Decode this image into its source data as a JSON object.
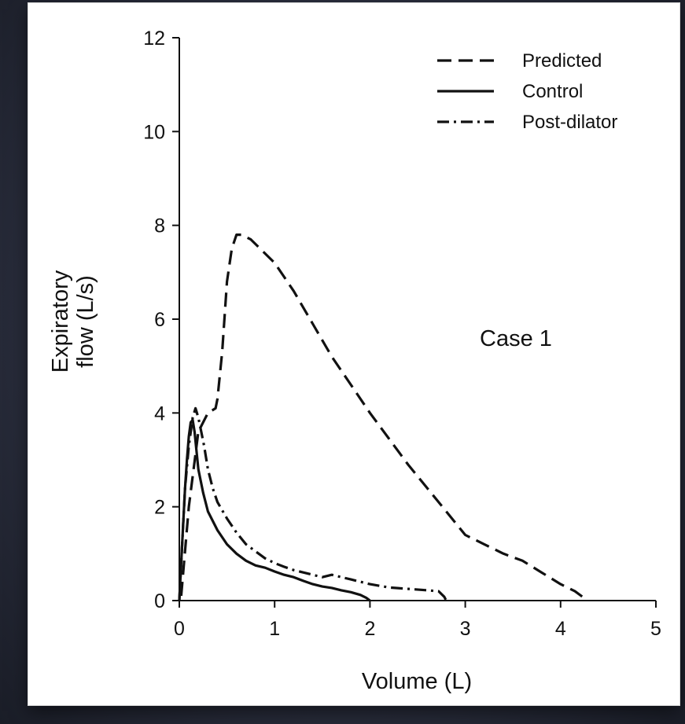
{
  "chart_data": {
    "type": "line",
    "title": "",
    "xlabel": "Volume (L)",
    "ylabel_lines": [
      "Expiratory",
      "flow (L/s)"
    ],
    "xlim": [
      0,
      5
    ],
    "ylim": [
      0,
      12
    ],
    "x_ticks": [
      0,
      1,
      2,
      3,
      4,
      5
    ],
    "y_ticks": [
      0,
      2,
      4,
      6,
      8,
      10,
      12
    ],
    "grid": false,
    "legend_position": "top-right",
    "annotation": "Case 1",
    "series": [
      {
        "name": "Predicted",
        "style": "dashed",
        "x": [
          0.02,
          0.1,
          0.2,
          0.3,
          0.38,
          0.4,
          0.45,
          0.5,
          0.55,
          0.6,
          0.65,
          0.75,
          0.85,
          1.0,
          1.2,
          1.4,
          1.6,
          1.8,
          2.0,
          2.2,
          2.4,
          2.6,
          2.8,
          3.0,
          3.2,
          3.4,
          3.6,
          3.8,
          4.0,
          4.15,
          4.25,
          4.28
        ],
        "y": [
          0.1,
          2.0,
          3.6,
          4.0,
          4.1,
          4.3,
          5.3,
          6.8,
          7.5,
          7.8,
          7.8,
          7.7,
          7.5,
          7.2,
          6.6,
          5.9,
          5.2,
          4.6,
          4.0,
          3.45,
          2.9,
          2.4,
          1.9,
          1.4,
          1.2,
          1.0,
          0.85,
          0.6,
          0.35,
          0.2,
          0.05,
          0.0
        ]
      },
      {
        "name": "Control",
        "style": "solid",
        "x": [
          0.0,
          0.02,
          0.04,
          0.06,
          0.08,
          0.1,
          0.12,
          0.14,
          0.16,
          0.18,
          0.2,
          0.25,
          0.3,
          0.4,
          0.5,
          0.6,
          0.7,
          0.8,
          0.9,
          1.0,
          1.1,
          1.2,
          1.3,
          1.4,
          1.5,
          1.6,
          1.7,
          1.8,
          1.9,
          1.96,
          2.0
        ],
        "y": [
          0.0,
          0.8,
          1.6,
          2.4,
          3.0,
          3.5,
          3.8,
          3.85,
          3.6,
          3.2,
          2.8,
          2.3,
          1.9,
          1.5,
          1.2,
          1.0,
          0.85,
          0.75,
          0.7,
          0.62,
          0.55,
          0.5,
          0.42,
          0.35,
          0.3,
          0.27,
          0.22,
          0.18,
          0.12,
          0.06,
          0.0
        ]
      },
      {
        "name": "Post-dilator",
        "style": "dashdot",
        "x": [
          0.0,
          0.03,
          0.06,
          0.1,
          0.14,
          0.17,
          0.2,
          0.23,
          0.26,
          0.3,
          0.35,
          0.4,
          0.5,
          0.6,
          0.7,
          0.8,
          0.9,
          1.0,
          1.1,
          1.2,
          1.3,
          1.4,
          1.5,
          1.6,
          1.7,
          1.8,
          1.9,
          2.0,
          2.2,
          2.4,
          2.6,
          2.72,
          2.78,
          2.8
        ],
        "y": [
          0.0,
          1.2,
          2.4,
          3.3,
          3.9,
          4.1,
          3.9,
          3.6,
          3.3,
          2.8,
          2.4,
          2.1,
          1.75,
          1.45,
          1.2,
          1.05,
          0.9,
          0.8,
          0.72,
          0.65,
          0.6,
          0.55,
          0.5,
          0.55,
          0.5,
          0.45,
          0.4,
          0.35,
          0.28,
          0.25,
          0.22,
          0.2,
          0.08,
          0.0
        ]
      }
    ]
  }
}
